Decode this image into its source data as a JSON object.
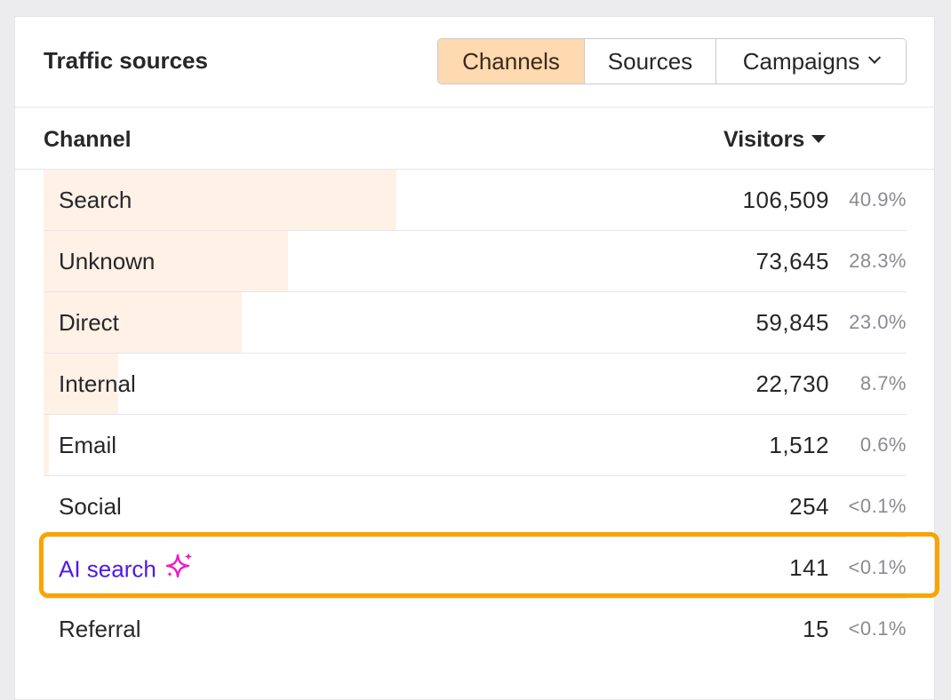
{
  "header": {
    "title": "Traffic sources",
    "tabs": [
      {
        "label": "Channels",
        "active": true
      },
      {
        "label": "Sources",
        "active": false
      },
      {
        "label": "Campaigns",
        "active": false,
        "has_dropdown": true
      }
    ]
  },
  "table": {
    "columns": {
      "channel": "Channel",
      "visitors": "Visitors"
    },
    "sort": "visitors-desc",
    "rows": [
      {
        "label": "Search",
        "visitors": "106,509",
        "percent": "40.9%",
        "share": 0.409
      },
      {
        "label": "Unknown",
        "visitors": "73,645",
        "percent": "28.3%",
        "share": 0.283
      },
      {
        "label": "Direct",
        "visitors": "59,845",
        "percent": "23.0%",
        "share": 0.23
      },
      {
        "label": "Internal",
        "visitors": "22,730",
        "percent": "8.7%",
        "share": 0.087
      },
      {
        "label": "Email",
        "visitors": "1,512",
        "percent": "0.6%",
        "share": 0.006
      },
      {
        "label": "Social",
        "visitors": "254",
        "percent": "<0.1%",
        "share": 0.0
      },
      {
        "label": "AI search",
        "visitors": "141",
        "percent": "<0.1%",
        "share": 0.0,
        "highlighted": true,
        "icon": "sparkles-icon"
      },
      {
        "label": "Referral",
        "visitors": "15",
        "percent": "<0.1%",
        "share": 0.0
      }
    ]
  },
  "colors": {
    "active_tab": "#ffd9b0",
    "bar_fill": "#fff1e6",
    "highlight_border": "#f9a400",
    "ai_label": "#4f1ae6",
    "sparkle": "#e91ec8"
  }
}
